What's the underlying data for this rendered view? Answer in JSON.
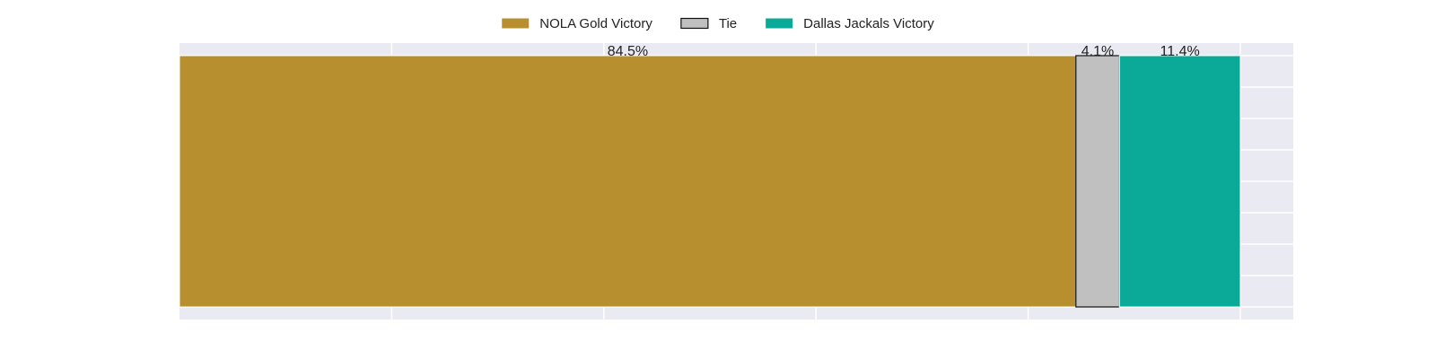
{
  "chart_data": {
    "type": "bar",
    "orientation": "horizontal-stacked",
    "grid": true,
    "legend_position": "top-center",
    "xlim": [
      0,
      100
    ],
    "series": [
      {
        "name": "NOLA Gold Victory",
        "value": 84.5,
        "label": "84.5%",
        "color": "#b88f2f",
        "outlined": false
      },
      {
        "name": "Tie",
        "value": 4.1,
        "label": "4.1%",
        "color": "#c0c0c0",
        "outlined": true
      },
      {
        "name": "Dallas Jackals Victory",
        "value": 11.4,
        "label": "11.4%",
        "color": "#0aa998",
        "outlined": false
      }
    ]
  },
  "colors": {
    "plot_background": "#eaeaf2",
    "grid": "#ffffff",
    "text": "#222222",
    "outline": "#111111"
  }
}
